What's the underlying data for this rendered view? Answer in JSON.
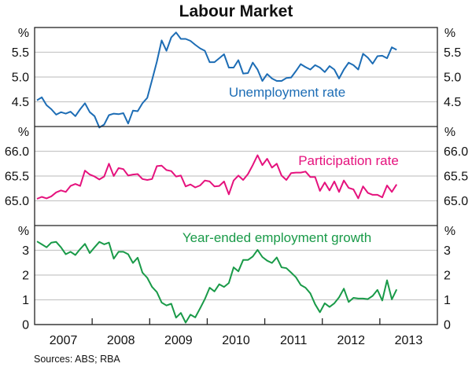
{
  "chart_data": {
    "type": "line",
    "title": "Labour Market",
    "source": "Sources: ABS; RBA",
    "x_start": "2007-01",
    "frequency": "monthly",
    "x_ticks": [
      "2007",
      "2008",
      "2009",
      "2010",
      "2011",
      "2012",
      "2013"
    ],
    "grid": true,
    "panels": [
      {
        "name": "Unemployment rate",
        "unit": "%",
        "color": "#1d6db5",
        "ylim": [
          4.0,
          6.0
        ],
        "ticks": [
          "4.5",
          "5.0",
          "5.5"
        ],
        "tick_values": [
          4.5,
          5.0,
          5.5
        ],
        "values": [
          4.53,
          4.59,
          4.43,
          4.35,
          4.24,
          4.29,
          4.26,
          4.3,
          4.21,
          4.35,
          4.47,
          4.29,
          4.21,
          3.98,
          4.04,
          4.23,
          4.26,
          4.25,
          4.27,
          4.06,
          4.32,
          4.31,
          4.47,
          4.58,
          4.94,
          5.31,
          5.74,
          5.53,
          5.8,
          5.9,
          5.77,
          5.77,
          5.73,
          5.65,
          5.58,
          5.53,
          5.3,
          5.3,
          5.38,
          5.46,
          5.19,
          5.19,
          5.34,
          5.07,
          5.08,
          5.29,
          5.15,
          4.92,
          5.06,
          4.97,
          4.92,
          4.92,
          4.98,
          4.99,
          5.12,
          5.26,
          5.2,
          5.15,
          5.24,
          5.19,
          5.1,
          5.22,
          5.15,
          4.97,
          5.15,
          5.29,
          5.24,
          5.15,
          5.47,
          5.39,
          5.27,
          5.42,
          5.43,
          5.38,
          5.6,
          5.55
        ]
      },
      {
        "name": "Participation rate",
        "unit": "%",
        "color": "#e5127d",
        "ylim": [
          64.5,
          66.5
        ],
        "ticks": [
          "65.0",
          "65.5",
          "66.0"
        ],
        "tick_values": [
          65.0,
          65.5,
          66.0
        ],
        "values": [
          65.04,
          65.08,
          65.05,
          65.09,
          65.17,
          65.21,
          65.18,
          65.3,
          65.34,
          65.3,
          65.61,
          65.53,
          65.49,
          65.43,
          65.49,
          65.75,
          65.5,
          65.66,
          65.64,
          65.51,
          65.53,
          65.54,
          65.44,
          65.42,
          65.44,
          65.7,
          65.71,
          65.62,
          65.6,
          65.49,
          65.51,
          65.29,
          65.33,
          65.27,
          65.31,
          65.41,
          65.39,
          65.29,
          65.3,
          65.39,
          65.13,
          65.41,
          65.51,
          65.42,
          65.54,
          65.72,
          65.92,
          65.72,
          65.85,
          65.67,
          65.75,
          65.51,
          65.42,
          65.56,
          65.57,
          65.57,
          65.59,
          65.48,
          65.48,
          65.2,
          65.37,
          65.21,
          65.39,
          65.18,
          65.41,
          65.26,
          65.23,
          65.05,
          65.29,
          65.16,
          65.12,
          65.12,
          65.07,
          65.31,
          65.18,
          65.33
        ]
      },
      {
        "name": "Year-ended employment growth",
        "unit": "%",
        "color": "#199a48",
        "ylim": [
          0,
          4
        ],
        "ticks": [
          "0",
          "1",
          "2",
          "3"
        ],
        "tick_values": [
          0,
          1,
          2,
          3
        ],
        "values": [
          3.36,
          3.24,
          3.12,
          3.31,
          3.34,
          3.12,
          2.84,
          2.94,
          2.81,
          3.05,
          3.26,
          2.89,
          3.12,
          3.34,
          3.24,
          3.31,
          2.66,
          2.94,
          2.94,
          2.84,
          2.49,
          2.7,
          2.1,
          1.89,
          1.52,
          1.31,
          0.89,
          0.77,
          0.84,
          0.28,
          0.47,
          0.08,
          0.4,
          0.29,
          0.65,
          1.03,
          1.49,
          1.34,
          1.63,
          1.52,
          1.68,
          2.31,
          2.15,
          2.61,
          2.61,
          2.75,
          3.02,
          2.73,
          2.58,
          2.49,
          2.71,
          2.31,
          2.28,
          2.1,
          1.91,
          1.6,
          1.49,
          1.26,
          0.82,
          0.5,
          0.86,
          0.71,
          0.86,
          1.1,
          1.45,
          0.91,
          1.08,
          1.05,
          1.05,
          1.03,
          1.16,
          1.4,
          0.97,
          1.79,
          1.02,
          1.42
        ]
      }
    ]
  }
}
